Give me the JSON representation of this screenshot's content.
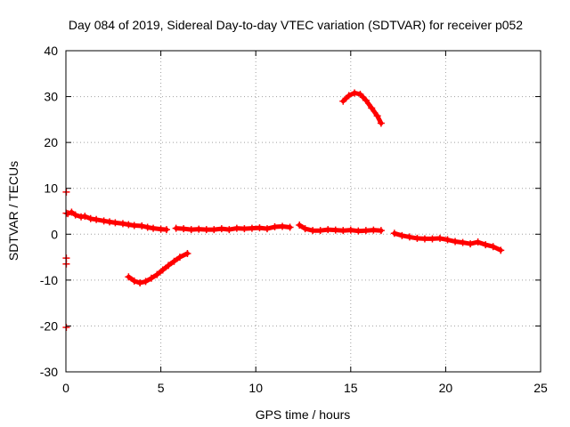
{
  "chart_data": {
    "type": "scatter",
    "title": "Day 084 of 2019, Sidereal Day-to-day VTEC variation (SDTVAR) for receiver p052",
    "xlabel": "GPS time / hours",
    "ylabel": "SDTVAR / TECUs",
    "xlim": [
      0,
      25
    ],
    "ylim": [
      -30,
      40
    ],
    "x_ticks": [
      0,
      5,
      10,
      15,
      20,
      25
    ],
    "y_ticks": [
      -30,
      -20,
      -10,
      0,
      10,
      20,
      30,
      40
    ],
    "x_tick_labels": [
      "0",
      "5",
      "10",
      "15",
      "20",
      "25"
    ],
    "y_tick_labels": [
      "-30",
      "-20",
      "-10",
      "0",
      "10",
      "20",
      "30",
      "40"
    ],
    "grid": true,
    "marker": "plus",
    "colors": {
      "series": "#ff0000",
      "grid": "#a0a0a0",
      "axis": "#000000"
    },
    "series": [
      {
        "name": "main-track-1",
        "x": [
          0.1,
          0.3,
          0.5,
          0.8,
          1.0,
          1.3,
          1.6,
          2.0,
          2.3,
          2.6,
          3.0,
          3.3,
          3.6,
          4.0,
          4.3,
          4.6,
          5.0,
          5.3
        ],
        "y": [
          4.5,
          4.8,
          4.2,
          3.8,
          3.9,
          3.4,
          3.2,
          2.9,
          2.7,
          2.5,
          2.3,
          2.1,
          1.9,
          1.8,
          1.5,
          1.3,
          1.1,
          1.0
        ]
      },
      {
        "name": "main-track-2",
        "x": [
          5.8,
          6.2,
          6.6,
          7.0,
          7.4,
          7.8,
          8.2,
          8.6,
          9.0,
          9.4,
          9.8,
          10.2,
          10.6,
          11.0,
          11.4,
          11.8
        ],
        "y": [
          1.3,
          1.2,
          1.0,
          1.1,
          1.0,
          1.0,
          1.2,
          1.0,
          1.3,
          1.2,
          1.3,
          1.4,
          1.2,
          1.6,
          1.7,
          1.5
        ]
      },
      {
        "name": "main-track-3",
        "x": [
          12.3,
          12.6,
          13.0,
          13.4,
          13.8,
          14.2,
          14.6,
          15.0,
          15.4,
          15.8,
          16.2,
          16.6
        ],
        "y": [
          2.0,
          1.2,
          0.8,
          0.8,
          1.0,
          0.9,
          0.8,
          0.9,
          0.7,
          0.8,
          0.9,
          0.8
        ]
      },
      {
        "name": "main-track-4",
        "x": [
          17.3,
          17.7,
          18.1,
          18.5,
          18.9,
          19.3,
          19.7,
          20.1,
          20.5,
          20.9,
          21.3,
          21.7,
          22.1,
          22.5,
          22.9
        ],
        "y": [
          0.2,
          -0.3,
          -0.6,
          -0.9,
          -1.0,
          -1.0,
          -0.9,
          -1.2,
          -1.6,
          -1.8,
          -2.1,
          -1.7,
          -2.3,
          -2.7,
          -3.5
        ]
      },
      {
        "name": "negative-arc",
        "x": [
          3.3,
          3.6,
          3.9,
          4.2,
          4.5,
          4.8,
          5.1,
          5.4,
          5.7,
          6.0,
          6.4
        ],
        "y": [
          -9.3,
          -10.2,
          -10.6,
          -10.3,
          -9.6,
          -8.8,
          -7.8,
          -6.8,
          -5.9,
          -5.0,
          -4.2
        ]
      },
      {
        "name": "positive-arc",
        "x": [
          14.6,
          14.9,
          15.2,
          15.5,
          15.8,
          16.1,
          16.4,
          16.6
        ],
        "y": [
          29.0,
          30.2,
          30.8,
          30.5,
          29.2,
          27.5,
          25.8,
          24.2
        ]
      },
      {
        "name": "isolated-points",
        "x": [
          0.02,
          0.02,
          0.02,
          0.02,
          0.02
        ],
        "y": [
          9.2,
          -5.2,
          -6.5,
          -20.3,
          4.6
        ]
      }
    ]
  }
}
